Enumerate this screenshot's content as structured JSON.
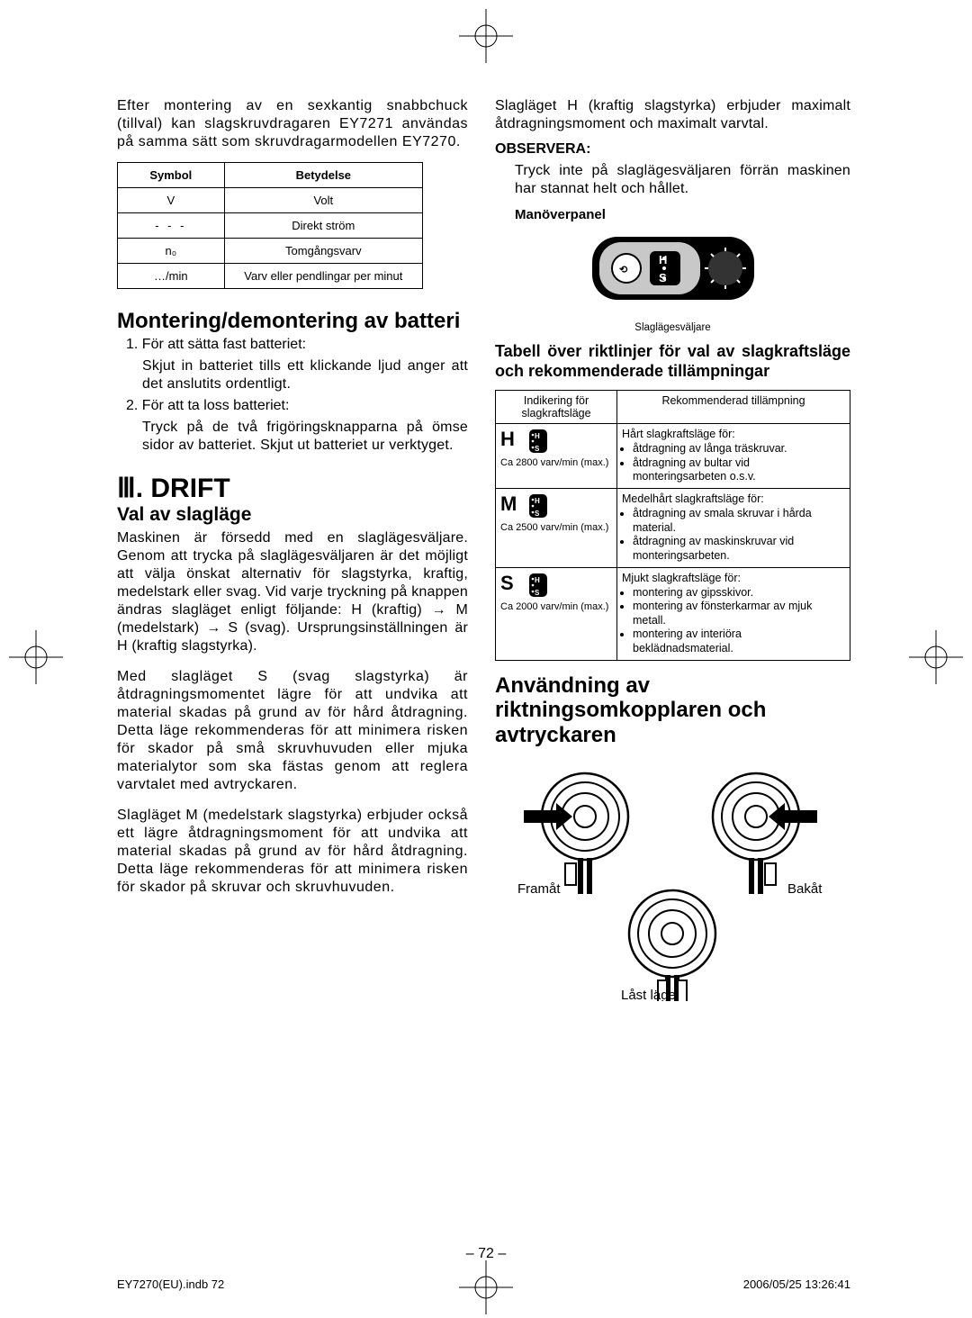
{
  "colors": {
    "fg": "#000000",
    "bg": "#ffffff"
  },
  "typography": {
    "body_size": 16,
    "h1_size": 30,
    "h2_size": 24,
    "h3_size": 21,
    "small_size": 13
  },
  "left": {
    "intro": "Efter montering av en sexkantig snabbchuck (tillval) kan slagskruvdragaren EY7271 användas på samma sätt som skruvdragarmodellen EY7270.",
    "sym_table": {
      "head": [
        "Symbol",
        "Betydelse"
      ],
      "rows": [
        [
          "V",
          "Volt"
        ],
        [
          "⎓",
          "Direkt ström"
        ],
        [
          "n₀",
          "Tomgångsvarv"
        ],
        [
          "…/min",
          "Varv eller pendlingar per minut"
        ]
      ]
    },
    "h_battery": "Montering/demontering av batteri",
    "battery": [
      "1. För att sätta fast batteriet:",
      "Skjut in batteriet tills ett klickande ljud anger att det anslutits ordentligt.",
      "2. För att ta loss batteriet:",
      "Tryck på de två frigöringsknapparna på ömse sidor av batteriet. Skjut ut batteriet ur verktyget."
    ],
    "roman": "Ⅲ",
    "drift": "DRIFT",
    "h_val": "Val av slagläge",
    "val_p1": "Maskinen är försedd med en slaglägesväljare. Genom att trycka på slaglägesväljaren är det möjligt att välja önskat alternativ för slagstyrka, kraftig, medelstark eller svag. Vid varje tryckning på knappen ändras slagläget enligt följande: H (kraftig) → M (medelstark) → S (svag). Ursprungsinställningen är H (kraftig slagstyrka).",
    "val_p2": "Med slagläget S (svag slagstyrka) är åtdragningsmomentet lägre för att undvika att material skadas på grund av för hård åtdragning. Detta läge rekommenderas för att minimera risken för skador på små skruvhuvuden eller mjuka materialytor som ska fästas genom att reglera varvtalet med avtryckaren.",
    "val_p3": "Slagläget M (medelstark slagstyrka) erbjuder också ett lägre åtdragningsmoment för att undvika att material skadas på grund av för hård åtdragning. Detta läge rekommenderas för att minimera risken för skador på skruvar och skruvhuvuden."
  },
  "right": {
    "top": "Slagläget H (kraftig slagstyrka) erbjuder maximalt åtdragningsmoment och maximalt varvtal.",
    "obs_head": "OBSERVERA:",
    "obs_txt": "Tryck inte på slaglägesväljaren förrän maskinen har stannat helt och hållet.",
    "panel_cap": "Manöverpanel",
    "panel_sub": "Slaglägesväljare",
    "panel": {
      "H": "H",
      "S": "S"
    },
    "h_table": "Tabell över riktlinjer för val av slagkraftsläge och rekommenderade tillämpningar",
    "app_table": {
      "head": [
        "Indikering för slagkraftsläge",
        "Rekommenderad tillämpning"
      ],
      "rows": [
        {
          "letter": "H",
          "sub": "Ca 2800 varv/min (max.)",
          "title": "Hårt slagkraftsläge för:",
          "bullets": [
            "åtdragning av långa träskruvar.",
            "åtdragning av bultar vid monteringsarbeten o.s.v."
          ]
        },
        {
          "letter": "M",
          "sub": "Ca 2500 varv/min (max.)",
          "title": "Medelhårt slagkraftsläge för:",
          "bullets": [
            "åtdragning av smala skruvar i hårda material.",
            "åtdragning av maskinskruvar vid monteringsarbeten."
          ]
        },
        {
          "letter": "S",
          "sub": "Ca 2000 varv/min (max.)",
          "title": "Mjukt slagkraftsläge för:",
          "bullets": [
            "montering av gipsskivor.",
            "montering av fönsterkarmar av mjuk metall.",
            "montering av interiöra beklädnadsmaterial."
          ]
        }
      ]
    },
    "h_dir": "Användning av riktningsomkopplaren och avtryckaren",
    "dir": {
      "fwd": "Framåt",
      "back": "Bakåt",
      "lock": "Låst läge"
    }
  },
  "page_num": "– 72 –",
  "footer": {
    "left": "EY7270(EU).indb   72",
    "right": "2006/05/25   13:26:41"
  }
}
